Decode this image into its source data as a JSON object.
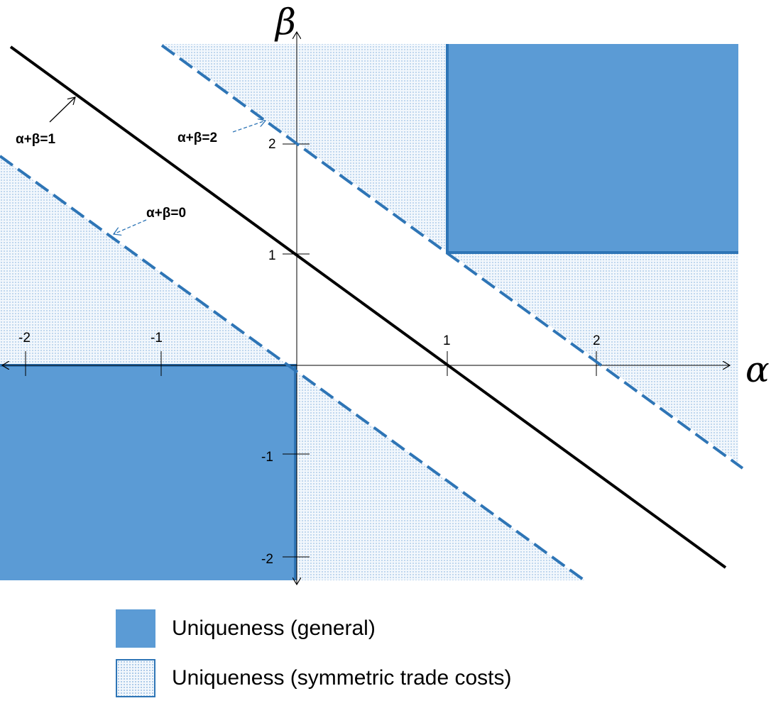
{
  "axes": {
    "x_label": "α",
    "y_label": "β",
    "x_ticks": [
      "-2",
      "-1",
      "1",
      "2"
    ],
    "y_ticks": [
      "2",
      "1",
      "-1",
      "-2"
    ]
  },
  "lines": {
    "sum1": "α+β=1",
    "sum2": "α+β=2",
    "sum0": "α+β=0"
  },
  "legend": {
    "general": "Uniqueness (general)",
    "symmetric": "Uniqueness (symmetric trade costs)"
  },
  "colors": {
    "solid_region": "#5b9bd5",
    "dashed_line": "#2e75b6",
    "dotted_region": "#9cc0e4"
  }
}
